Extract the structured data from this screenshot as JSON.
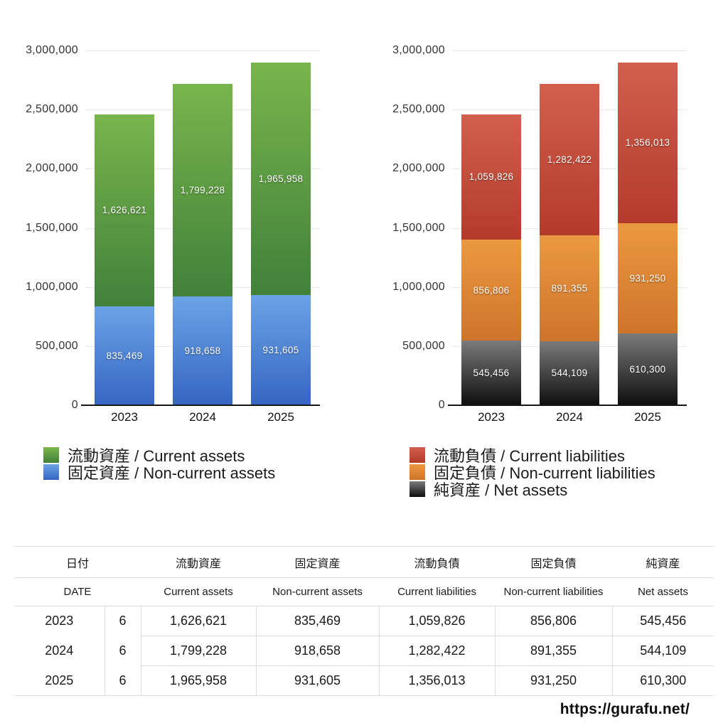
{
  "chart_data": [
    {
      "type": "bar",
      "stacked": true,
      "title": "",
      "categories": [
        "2023",
        "2024",
        "2025"
      ],
      "ymax": 3000000,
      "ylim": [
        0,
        3000000
      ],
      "grid": true,
      "y_ticks": [
        "3,000,000",
        "2,500,000",
        "2,000,000",
        "1,500,000",
        "1,000,000",
        "500,000",
        "0"
      ],
      "legend_position": "bottom-left",
      "series": [
        {
          "name": "流動資産 / Current assets",
          "values": [
            1626621,
            1799228,
            1965958
          ],
          "color_top": "#79b54c",
          "color_bottom": "#41813a"
        },
        {
          "name": "固定資産 / Non-current assets",
          "values": [
            835469,
            918658,
            931605
          ],
          "color_top": "#6ba3e6",
          "color_bottom": "#3566c2"
        }
      ],
      "note": "series listed top-to-bottom of stack; totals 2,462,090 / 2,717,886 / 2,897,563"
    },
    {
      "type": "bar",
      "stacked": true,
      "title": "",
      "categories": [
        "2023",
        "2024",
        "2025"
      ],
      "ymax": 3000000,
      "ylim": [
        0,
        3000000
      ],
      "grid": true,
      "y_ticks": [
        "3,000,000",
        "2,500,000",
        "2,000,000",
        "1,500,000",
        "1,000,000",
        "500,000",
        "0"
      ],
      "legend_position": "bottom-left",
      "series": [
        {
          "name": "流動負債 / Current liabilities",
          "values": [
            1059826,
            1282422,
            1356013
          ],
          "color_top": "#d25f4d",
          "color_bottom": "#b33b29"
        },
        {
          "name": "固定負債 / Non-current liabilities",
          "values": [
            856806,
            891355,
            931250
          ],
          "color_top": "#eb9940",
          "color_bottom": "#ce742b"
        },
        {
          "name": "純資産 / Net assets",
          "values": [
            545456,
            544109,
            610300
          ],
          "color_top": "#7b7b7b",
          "color_bottom": "#0e0e0e"
        }
      ],
      "note": "series listed top-to-bottom of stack"
    }
  ],
  "table": {
    "headers_jp": [
      "日付",
      "流動資産",
      "固定資産",
      "流動負債",
      "固定負債",
      "純資産"
    ],
    "headers_en": [
      "DATE",
      "Current assets",
      "Non-current assets",
      "Current liabilities",
      "Non-current liabilities",
      "Net assets"
    ],
    "rows": [
      {
        "year": "2023",
        "month": "6",
        "values": [
          1626621,
          835469,
          1059826,
          856806,
          545456
        ]
      },
      {
        "year": "2024",
        "month": "6",
        "values": [
          1799228,
          918658,
          1282422,
          891355,
          544109
        ]
      },
      {
        "year": "2025",
        "month": "6",
        "values": [
          1965958,
          931605,
          1356013,
          931250,
          610300
        ]
      }
    ]
  },
  "footer": {
    "url": "https://gurafu.net/"
  },
  "colors": {
    "background": "#ffffff",
    "gridline": "#e8e8e8",
    "axis": "#161616",
    "tick_text": "#333333",
    "table_border": "#dcdcdc",
    "bar_label_text": "#ffffff"
  }
}
